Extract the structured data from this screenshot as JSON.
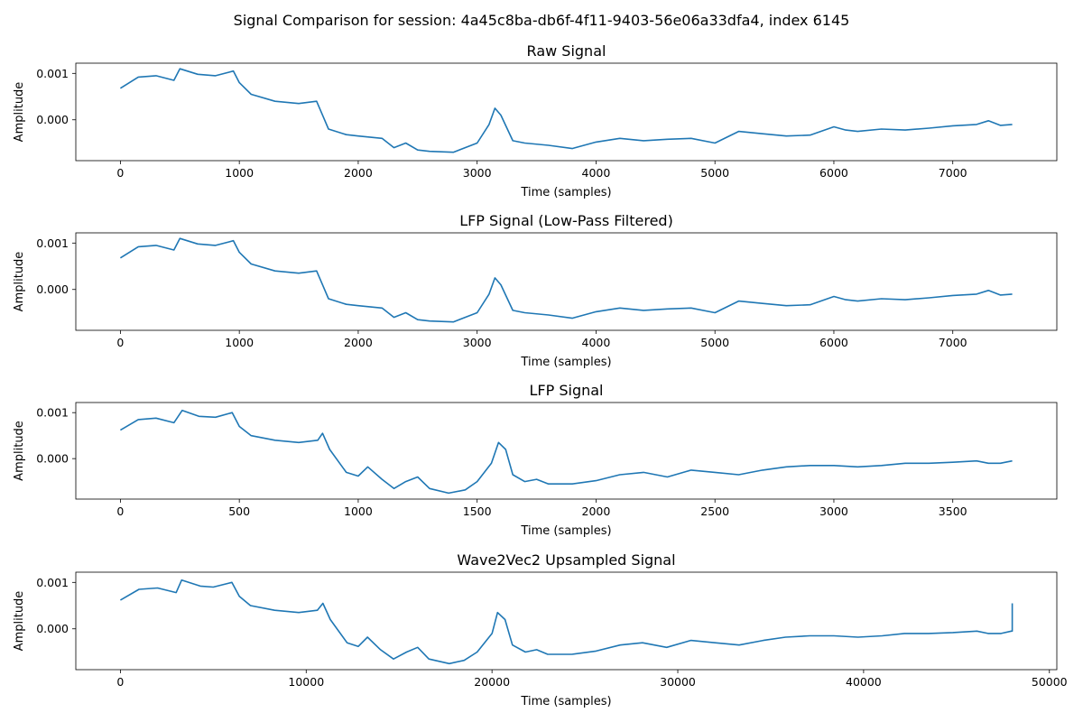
{
  "figure": {
    "suptitle": "Signal Comparison for session: 4a45c8ba-db6f-4f11-9403-56e06a33dfa4, index 6145",
    "line_color": "#1f77b4"
  },
  "chart_data": [
    {
      "type": "line",
      "title": "Raw Signal",
      "xlabel": "Time (samples)",
      "ylabel": "Amplitude",
      "xlim": [
        -375,
        7875
      ],
      "ylim": [
        -0.00088,
        0.00122
      ],
      "xticks": [
        0,
        1000,
        2000,
        3000,
        4000,
        5000,
        6000,
        7000
      ],
      "xtick_labels": [
        "0",
        "1000",
        "2000",
        "3000",
        "4000",
        "5000",
        "6000",
        "7000"
      ],
      "yticks": [
        0.0,
        0.001
      ],
      "ytick_labels": [
        "0.000",
        "0.001"
      ],
      "grid": false,
      "series": [
        {
          "x": [
            0,
            150,
            300,
            450,
            500,
            650,
            800,
            950,
            1000,
            1100,
            1300,
            1500,
            1650,
            1700,
            1750,
            1900,
            2000,
            2200,
            2300,
            2400,
            2500,
            2600,
            2800,
            3000,
            3100,
            3150,
            3200,
            3300,
            3400,
            3600,
            3800,
            4000,
            4200,
            4400,
            4600,
            4800,
            5000,
            5200,
            5400,
            5600,
            5800,
            6000,
            6100,
            6200,
            6400,
            6600,
            6800,
            7000,
            7200,
            7300,
            7400,
            7500
          ],
          "y": [
            0.00068,
            0.00092,
            0.00095,
            0.00085,
            0.0011,
            0.00098,
            0.00095,
            0.00105,
            0.0008,
            0.00055,
            0.0004,
            0.00035,
            0.0004,
            0.0001,
            -0.0002,
            -0.00032,
            -0.00035,
            -0.0004,
            -0.0006,
            -0.0005,
            -0.00065,
            -0.00068,
            -0.0007,
            -0.0005,
            -0.0001,
            0.00025,
            0.0001,
            -0.00045,
            -0.0005,
            -0.00055,
            -0.00062,
            -0.00048,
            -0.0004,
            -0.00045,
            -0.00042,
            -0.0004,
            -0.0005,
            -0.00025,
            -0.0003,
            -0.00035,
            -0.00033,
            -0.00015,
            -0.00022,
            -0.00025,
            -0.0002,
            -0.00022,
            -0.00018,
            -0.00013,
            -0.0001,
            -2e-05,
            -0.00012,
            -0.0001
          ]
        }
      ]
    },
    {
      "type": "line",
      "title": "LFP Signal (Low-Pass Filtered)",
      "xlabel": "Time (samples)",
      "ylabel": "Amplitude",
      "xlim": [
        -375,
        7875
      ],
      "ylim": [
        -0.00088,
        0.00122
      ],
      "xticks": [
        0,
        1000,
        2000,
        3000,
        4000,
        5000,
        6000,
        7000
      ],
      "xtick_labels": [
        "0",
        "1000",
        "2000",
        "3000",
        "4000",
        "5000",
        "6000",
        "7000"
      ],
      "yticks": [
        0.0,
        0.001
      ],
      "ytick_labels": [
        "0.000",
        "0.001"
      ],
      "grid": false,
      "series": [
        {
          "x": [
            0,
            150,
            300,
            450,
            500,
            650,
            800,
            950,
            1000,
            1100,
            1300,
            1500,
            1650,
            1700,
            1750,
            1900,
            2000,
            2200,
            2300,
            2400,
            2500,
            2600,
            2800,
            3000,
            3100,
            3150,
            3200,
            3300,
            3400,
            3600,
            3800,
            4000,
            4200,
            4400,
            4600,
            4800,
            5000,
            5200,
            5400,
            5600,
            5800,
            6000,
            6100,
            6200,
            6400,
            6600,
            6800,
            7000,
            7200,
            7300,
            7400,
            7500
          ],
          "y": [
            0.00068,
            0.00092,
            0.00095,
            0.00085,
            0.0011,
            0.00098,
            0.00095,
            0.00105,
            0.0008,
            0.00055,
            0.0004,
            0.00035,
            0.0004,
            0.0001,
            -0.0002,
            -0.00032,
            -0.00035,
            -0.0004,
            -0.0006,
            -0.0005,
            -0.00065,
            -0.00068,
            -0.0007,
            -0.0005,
            -0.0001,
            0.00025,
            0.0001,
            -0.00045,
            -0.0005,
            -0.00055,
            -0.00062,
            -0.00048,
            -0.0004,
            -0.00045,
            -0.00042,
            -0.0004,
            -0.0005,
            -0.00025,
            -0.0003,
            -0.00035,
            -0.00033,
            -0.00015,
            -0.00022,
            -0.00025,
            -0.0002,
            -0.00022,
            -0.00018,
            -0.00013,
            -0.0001,
            -2e-05,
            -0.00012,
            -0.0001
          ]
        }
      ]
    },
    {
      "type": "line",
      "title": "LFP Signal",
      "xlabel": "Time (samples)",
      "ylabel": "Amplitude",
      "xlim": [
        -187.5,
        3937.5
      ],
      "ylim": [
        -0.00088,
        0.00122
      ],
      "xticks": [
        0,
        500,
        1000,
        1500,
        2000,
        2500,
        3000,
        3500
      ],
      "xtick_labels": [
        "0",
        "500",
        "1000",
        "1500",
        "2000",
        "2500",
        "3000",
        "3500"
      ],
      "yticks": [
        0.0,
        0.001
      ],
      "ytick_labels": [
        "0.000",
        "0.001"
      ],
      "grid": false,
      "series": [
        {
          "x": [
            0,
            75,
            150,
            225,
            260,
            330,
            400,
            470,
            500,
            550,
            650,
            750,
            830,
            850,
            880,
            950,
            1000,
            1040,
            1100,
            1150,
            1200,
            1250,
            1300,
            1380,
            1450,
            1500,
            1560,
            1590,
            1620,
            1650,
            1700,
            1750,
            1800,
            1900,
            2000,
            2100,
            2200,
            2300,
            2400,
            2500,
            2600,
            2700,
            2800,
            2900,
            3000,
            3100,
            3200,
            3300,
            3400,
            3500,
            3600,
            3650,
            3700,
            3750
          ],
          "y": [
            0.00062,
            0.00085,
            0.00088,
            0.00078,
            0.00105,
            0.00092,
            0.0009,
            0.001,
            0.0007,
            0.0005,
            0.0004,
            0.00035,
            0.0004,
            0.00055,
            0.0002,
            -0.0003,
            -0.00038,
            -0.00018,
            -0.00045,
            -0.00065,
            -0.0005,
            -0.0004,
            -0.00065,
            -0.00075,
            -0.00068,
            -0.0005,
            -0.0001,
            0.00035,
            0.0002,
            -0.00035,
            -0.0005,
            -0.00045,
            -0.00055,
            -0.00055,
            -0.00048,
            -0.00035,
            -0.0003,
            -0.0004,
            -0.00025,
            -0.0003,
            -0.00035,
            -0.00025,
            -0.00018,
            -0.00015,
            -0.00015,
            -0.00018,
            -0.00015,
            -0.0001,
            -0.0001,
            -8e-05,
            -5e-05,
            -0.0001,
            -0.0001,
            -5e-05
          ]
        }
      ]
    },
    {
      "type": "line",
      "title": "Wave2Vec2 Upsampled Signal",
      "xlabel": "Time (samples)",
      "ylabel": "Amplitude",
      "xlim": [
        -2400,
        50400
      ],
      "ylim": [
        -0.00088,
        0.00122
      ],
      "xticks": [
        0,
        10000,
        20000,
        30000,
        40000,
        50000
      ],
      "xtick_labels": [
        "0",
        "10000",
        "20000",
        "30000",
        "40000",
        "50000"
      ],
      "yticks": [
        0.0,
        0.001
      ],
      "ytick_labels": [
        "0.000",
        "0.001"
      ],
      "grid": false,
      "series": [
        {
          "x": [
            0,
            1000,
            2000,
            3000,
            3300,
            4300,
            5000,
            6000,
            6400,
            7000,
            8300,
            9600,
            10600,
            10900,
            11300,
            12200,
            12800,
            13300,
            14000,
            14700,
            15400,
            16000,
            16600,
            17700,
            18500,
            19200,
            20000,
            20300,
            20700,
            21100,
            21800,
            22400,
            23000,
            24300,
            25600,
            26900,
            28100,
            29400,
            30700,
            32000,
            33300,
            34600,
            35800,
            37100,
            38400,
            39700,
            41000,
            42200,
            43500,
            44800,
            46100,
            46700,
            47400,
            47950,
            48000,
            48000
          ],
          "y": [
            0.00062,
            0.00085,
            0.00088,
            0.00078,
            0.00105,
            0.00092,
            0.0009,
            0.001,
            0.0007,
            0.0005,
            0.0004,
            0.00035,
            0.0004,
            0.00055,
            0.0002,
            -0.0003,
            -0.00038,
            -0.00018,
            -0.00045,
            -0.00065,
            -0.0005,
            -0.0004,
            -0.00065,
            -0.00075,
            -0.00068,
            -0.0005,
            -0.0001,
            0.00035,
            0.0002,
            -0.00035,
            -0.0005,
            -0.00045,
            -0.00055,
            -0.00055,
            -0.00048,
            -0.00035,
            -0.0003,
            -0.0004,
            -0.00025,
            -0.0003,
            -0.00035,
            -0.00025,
            -0.00018,
            -0.00015,
            -0.00015,
            -0.00018,
            -0.00015,
            -0.0001,
            -0.0001,
            -8e-05,
            -5e-05,
            -0.0001,
            -0.0001,
            -5e-05,
            -5e-05,
            0.00055
          ]
        }
      ]
    }
  ]
}
